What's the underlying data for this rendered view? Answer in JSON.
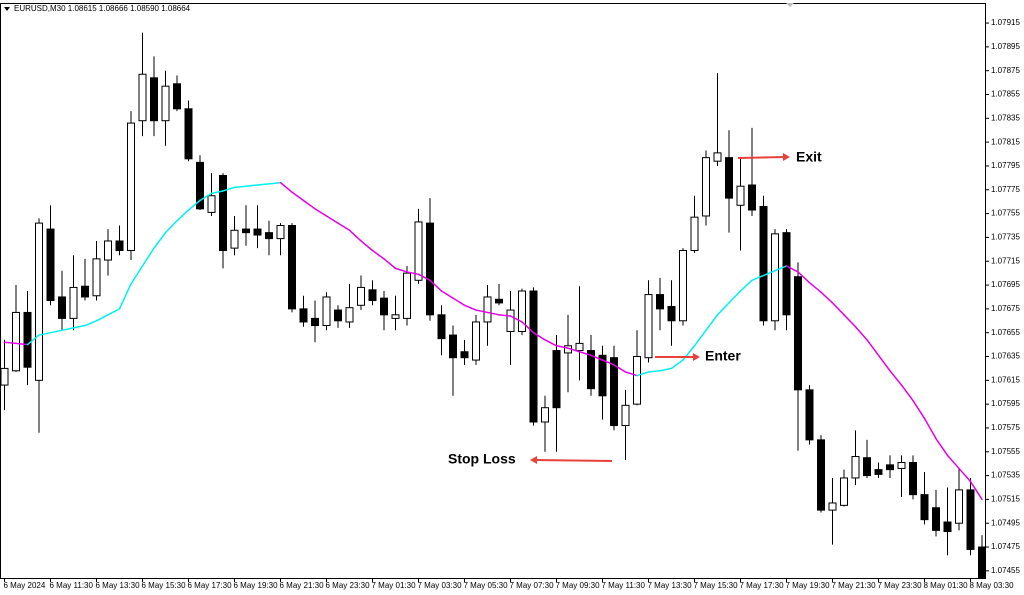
{
  "chart_data": {
    "type": "candlestick",
    "title": "EURUSD,M30  1.08615 1.08666 1.08590 1.08664",
    "categories": [
      "6 May 2024",
      null,
      null,
      null,
      "6 May 11:30",
      null,
      null,
      null,
      "6 May 13:30",
      null,
      null,
      null,
      "6 May 15:30",
      null,
      null,
      null,
      "6 May 17:30",
      null,
      null,
      null,
      "6 May 19:30",
      null,
      null,
      null,
      "6 May 21:30",
      null,
      null,
      null,
      "6 May 23:30",
      null,
      null,
      null,
      "7 May 01:30",
      null,
      null,
      null,
      "7 May 03:30",
      null,
      null,
      null,
      "7 May 05:30",
      null,
      null,
      null,
      "7 May 07:30",
      null,
      null,
      null,
      "7 May 09:30",
      null,
      null,
      null,
      "7 May 11:30",
      null,
      null,
      null,
      "7 May 13:30",
      null,
      null,
      null,
      "7 May 15:30",
      null,
      null,
      null,
      "7 May 17:30",
      null,
      null,
      null,
      "7 May 19:30",
      null,
      null,
      null,
      "7 May 21:30",
      null,
      null,
      null,
      "7 May 23:30",
      null,
      null,
      null,
      "8 May 01:30",
      null,
      null,
      null,
      "8 May 03:30",
      null
    ],
    "open": [
      1.07611,
      1.07623,
      1.07672,
      1.07615,
      1.07742,
      1.07685,
      1.07667,
      1.07694,
      1.07686,
      1.07716,
      1.07732,
      1.07724,
      1.07833,
      1.07869,
      1.07833,
      1.07864,
      1.07843,
      1.07798,
      1.07756,
      1.07787,
      1.07726,
      1.07742,
      1.07742,
      1.07739,
      1.07734,
      1.07745,
      1.07675,
      1.07667,
      1.07661,
      1.07674,
      1.07664,
      1.07678,
      1.07691,
      1.07684,
      1.07667,
      1.07667,
      1.07699,
      1.07747,
      1.0767,
      1.07653,
      1.07639,
      1.07632,
      1.07664,
      1.07683,
      1.07656,
      1.07656,
      1.0769,
      1.0758,
      1.0764,
      1.07638,
      1.0764,
      1.0764,
      1.07636,
      1.07634,
      1.07577,
      1.07595,
      1.07634,
      1.07687,
      1.07677,
      1.07665,
      1.07724,
      1.07753,
      1.07799,
      1.07802,
      1.07762,
      1.07779,
      1.07761,
      1.07665,
      1.07739,
      1.07702,
      1.07607,
      1.07565,
      1.07506,
      1.0751,
      1.07533,
      1.0755,
      1.0754,
      1.07544,
      1.07541,
      1.07546,
      1.07519,
      1.07508,
      1.07496,
      1.07495,
      1.07523,
      1.07475
    ],
    "high": [
      1.07649,
      1.07695,
      1.0769,
      1.07751,
      1.07762,
      1.07707,
      1.0772,
      1.07717,
      1.07732,
      1.07742,
      1.07745,
      1.07841,
      1.07907,
      1.07887,
      1.07875,
      1.07871,
      1.0785,
      1.07804,
      1.07789,
      1.07789,
      1.07753,
      1.07762,
      1.07762,
      1.07749,
      1.07747,
      1.07747,
      1.07686,
      1.07682,
      1.07689,
      1.07678,
      1.07696,
      1.07703,
      1.07699,
      1.0769,
      1.07686,
      1.07711,
      1.07759,
      1.07768,
      1.07678,
      1.07661,
      1.07649,
      1.0767,
      1.07695,
      1.07696,
      1.0769,
      1.07692,
      1.07693,
      1.07602,
      1.07653,
      1.0767,
      1.07694,
      1.07653,
      1.07644,
      1.07644,
      1.07607,
      1.07657,
      1.07699,
      1.07701,
      1.07699,
      1.07726,
      1.0777,
      1.07808,
      1.07873,
      1.07825,
      1.07801,
      1.07827,
      1.0777,
      1.07742,
      1.07742,
      1.07714,
      1.07611,
      1.07569,
      1.07533,
      1.0754,
      1.07573,
      1.07565,
      1.07546,
      1.07552,
      1.07552,
      1.07552,
      1.07538,
      1.07523,
      1.07525,
      1.07541,
      1.07533,
      1.07485
    ],
    "low": [
      1.0759,
      1.07622,
      1.07611,
      1.07571,
      1.07678,
      1.07657,
      1.07657,
      1.07682,
      1.07682,
      1.07703,
      1.0772,
      1.07716,
      1.0782,
      1.0782,
      1.07812,
      1.07841,
      1.07799,
      1.07758,
      1.07753,
      1.07709,
      1.0772,
      1.07728,
      1.07726,
      1.0772,
      1.0772,
      1.07672,
      1.0766,
      1.07647,
      1.07657,
      1.07659,
      1.07659,
      1.07674,
      1.07678,
      1.07657,
      1.07657,
      1.07661,
      1.07696,
      1.07665,
      1.07636,
      1.07602,
      1.07628,
      1.07628,
      1.07644,
      1.07678,
      1.07628,
      1.07653,
      1.07577,
      1.07555,
      1.07555,
      1.07605,
      1.07615,
      1.07602,
      1.07582,
      1.07573,
      1.07548,
      1.07594,
      1.0763,
      1.07657,
      1.07644,
      1.07661,
      1.07722,
      1.07745,
      1.07795,
      1.07739,
      1.07724,
      1.07753,
      1.07661,
      1.07657,
      1.07657,
      1.07556,
      1.07561,
      1.07504,
      1.07477,
      1.07509,
      1.07527,
      1.07533,
      1.07533,
      1.07533,
      1.07517,
      1.07515,
      1.07494,
      1.07484,
      1.07468,
      1.07489,
      1.07468,
      1.07447
    ],
    "close": [
      1.07625,
      1.07672,
      1.07626,
      1.07747,
      1.07682,
      1.07667,
      1.07693,
      1.07685,
      1.07717,
      1.07732,
      1.07724,
      1.07831,
      1.07872,
      1.07833,
      1.07862,
      1.07843,
      1.07801,
      1.07759,
      1.0777,
      1.07724,
      1.07741,
      1.07739,
      1.07737,
      1.07734,
      1.07745,
      1.07675,
      1.07664,
      1.07661,
      1.07685,
      1.07665,
      1.07676,
      1.07693,
      1.07682,
      1.0767,
      1.0767,
      1.07705,
      1.07748,
      1.0767,
      1.0765,
      1.07634,
      1.07634,
      1.07664,
      1.07685,
      1.0768,
      1.07674,
      1.0769,
      1.0758,
      1.07592,
      1.07592,
      1.07644,
      1.07646,
      1.07608,
      1.07602,
      1.07577,
      1.07594,
      1.07635,
      1.07687,
      1.07675,
      1.07665,
      1.07724,
      1.07752,
      1.07802,
      1.07806,
      1.07768,
      1.07778,
      1.07758,
      1.07665,
      1.07738,
      1.0767,
      1.07607,
      1.07565,
      1.07506,
      1.07512,
      1.07533,
      1.07551,
      1.07535,
      1.07536,
      1.0754,
      1.07546,
      1.07519,
      1.07498,
      1.07489,
      1.07488,
      1.07523,
      1.07473,
      1.07449
    ],
    "bull_color": "#ffffff",
    "bear_color": "#000000",
    "ma": {
      "up_color": "#00f0f0",
      "down_color": "#e600e6",
      "values": [
        1.07647,
        1.07646,
        1.07645,
        1.07653,
        1.07655,
        1.07657,
        1.07659,
        1.07661,
        1.07665,
        1.0767,
        1.07675,
        1.07696,
        1.07711,
        1.07726,
        1.07739,
        1.07749,
        1.07758,
        1.07766,
        1.07772,
        1.07774,
        1.07777,
        1.07778,
        1.07779,
        1.0778,
        1.07781,
        1.07773,
        1.07766,
        1.07759,
        1.07753,
        1.07747,
        1.07741,
        1.07732,
        1.07724,
        1.07717,
        1.07709,
        1.07706,
        1.07704,
        1.07699,
        1.0769,
        1.07684,
        1.07678,
        1.07674,
        1.07672,
        1.0767,
        1.07669,
        1.07664,
        1.07655,
        1.07649,
        1.07644,
        1.07642,
        1.07639,
        1.07636,
        1.07632,
        1.07628,
        1.07622,
        1.07619,
        1.07622,
        1.07623,
        1.07625,
        1.07632,
        1.07644,
        1.07657,
        1.0767,
        1.0768,
        1.0769,
        1.07699,
        1.07703,
        1.07707,
        1.07711,
        1.07706,
        1.07697,
        1.07689,
        1.0768,
        1.0767,
        1.0766,
        1.07649,
        1.07636,
        1.07623,
        1.07611,
        1.07598,
        1.07583,
        1.07566,
        1.07552,
        1.07541,
        1.0753,
        1.07515
      ]
    },
    "ylim": [
      1.07449,
      1.07931
    ],
    "yticks": [
      1.07915,
      1.07895,
      1.07875,
      1.07855,
      1.07835,
      1.07815,
      1.07795,
      1.07775,
      1.07755,
      1.07735,
      1.07715,
      1.07695,
      1.07675,
      1.07655,
      1.07635,
      1.07615,
      1.07595,
      1.07575,
      1.07555,
      1.07535,
      1.07515,
      1.07495,
      1.07475,
      1.07455
    ],
    "annotations": [
      {
        "text": "Stop Loss",
        "color": "#e8413b"
      },
      {
        "text": "Enter",
        "color": "#1f9e2c"
      },
      {
        "text": "Exit",
        "color": "#1c3fd2"
      }
    ],
    "arrow_color": "#e8413b"
  }
}
